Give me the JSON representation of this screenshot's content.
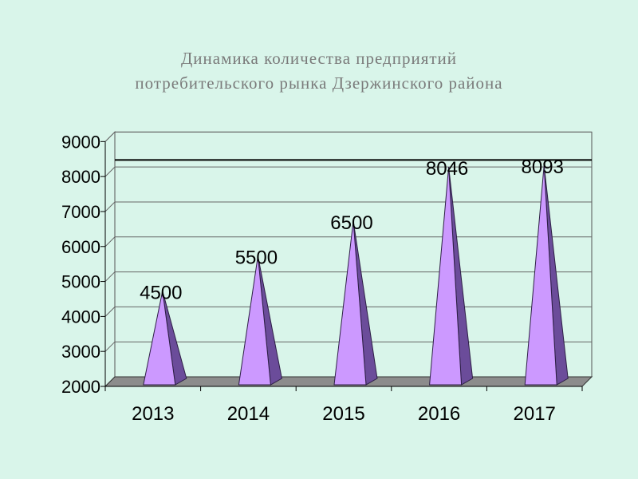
{
  "chart_data": {
    "type": "bar",
    "title_line1": "Динамика количества предприятий",
    "title_line2": "потребительского рынка Дзержинского района",
    "categories": [
      "2013",
      "2014",
      "2015",
      "2016",
      "2017"
    ],
    "values": [
      4500,
      5500,
      6500,
      8046,
      8093
    ],
    "data_labels": [
      "4500",
      "5500",
      "6500",
      "8046",
      "8093"
    ],
    "ylim": [
      2000,
      9000
    ],
    "yticks": [
      2000,
      3000,
      4000,
      5000,
      6000,
      7000,
      8000,
      9000
    ],
    "grid": true,
    "reference_line": 8200,
    "shape": "pyramid",
    "colors": {
      "bar_front": "#cc99ff",
      "bar_side": "#6b4c9a",
      "wall": "#d9f5ea",
      "floor": "#8c8c8c",
      "grid": "#000000"
    }
  }
}
